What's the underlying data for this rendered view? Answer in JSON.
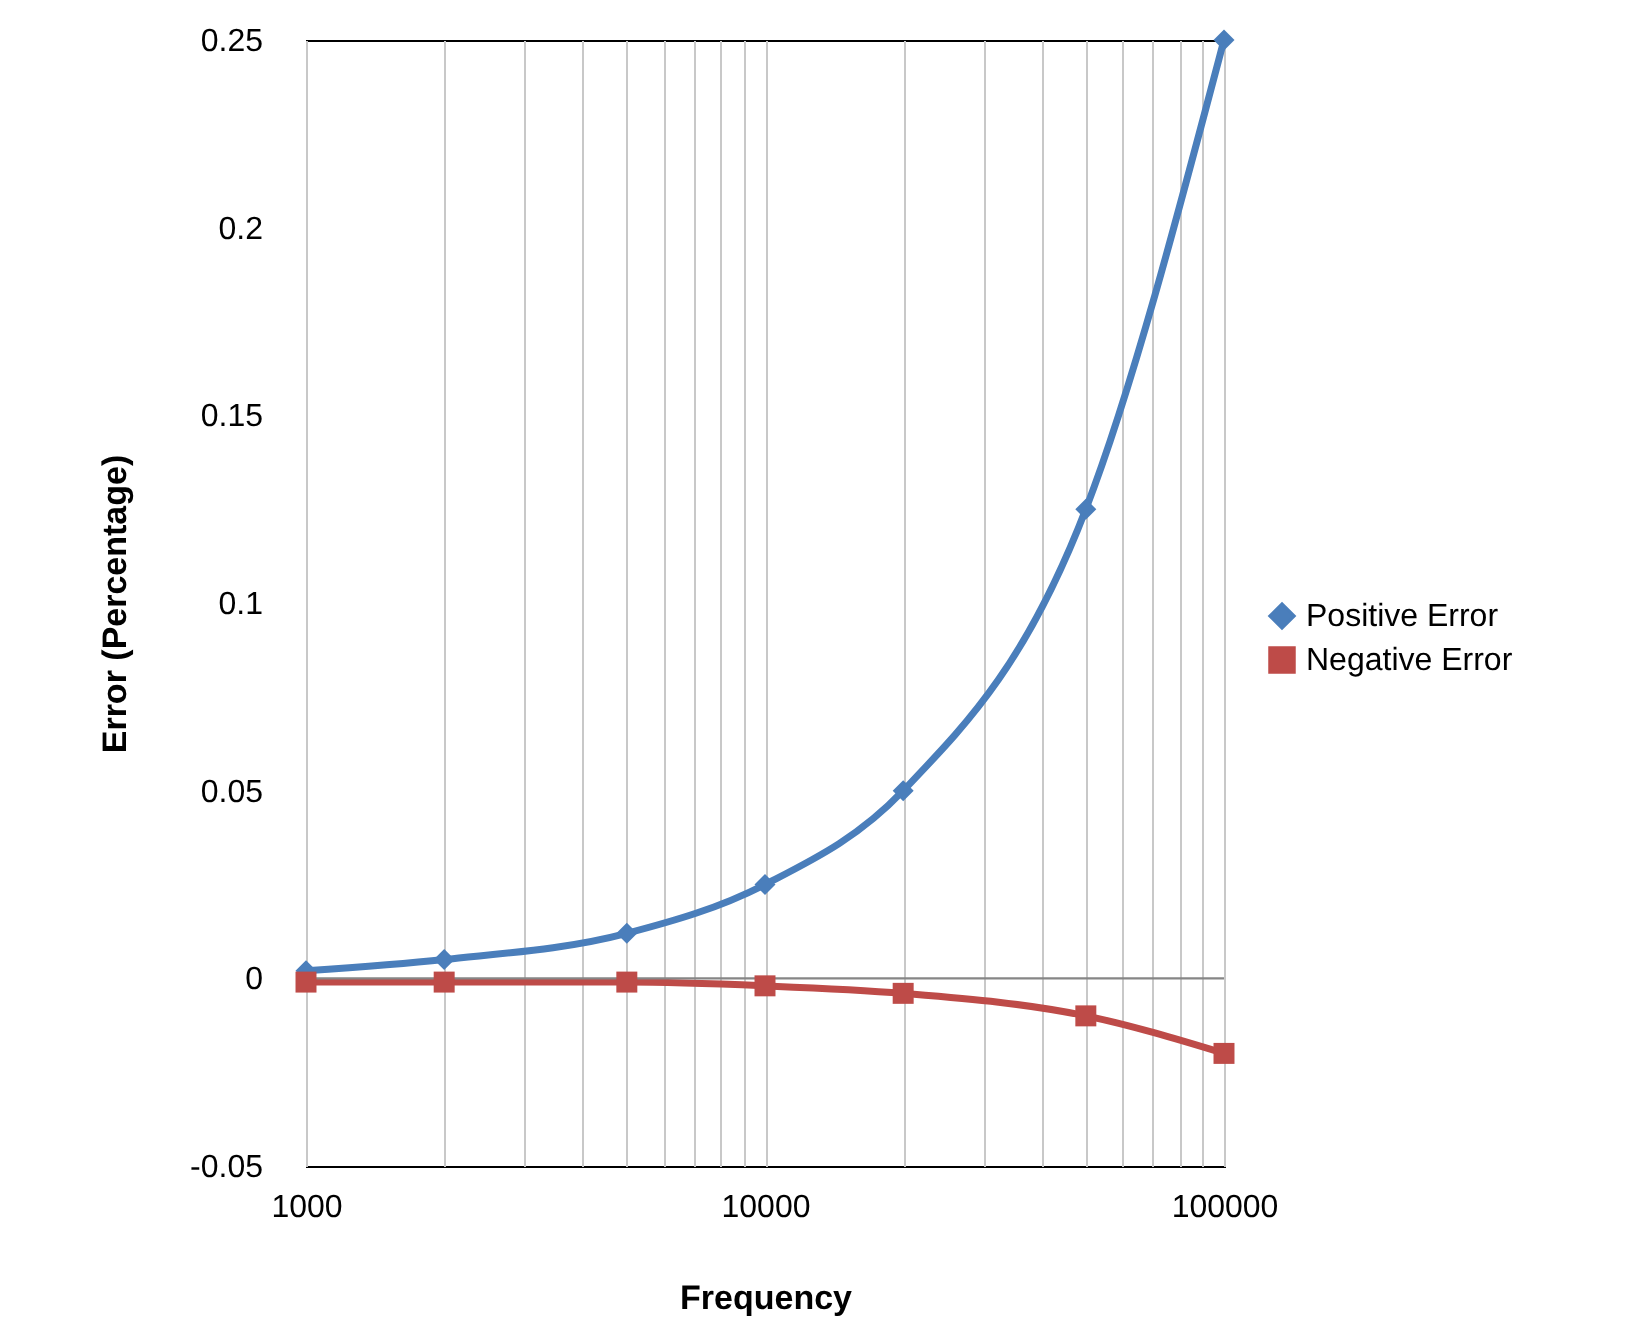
{
  "chart_data": {
    "type": "line",
    "xlabel": "Frequency",
    "ylabel": "Error (Percentage)",
    "log": "x",
    "grid": "x",
    "legend": "right",
    "line_style": "solid",
    "x": [
      1000,
      2000,
      5000,
      10000,
      20000,
      50000,
      100000
    ],
    "series": [
      {
        "name": "Positive Error",
        "color": "#4a7ebb",
        "marker": "diamond",
        "values": [
          0.002,
          0.005,
          0.012,
          0.025,
          0.05,
          0.125,
          0.25
        ]
      },
      {
        "name": "Negative Error",
        "color": "#be4b48",
        "marker": "square",
        "values": [
          -0.001,
          -0.001,
          -0.001,
          -0.002,
          -0.004,
          -0.01,
          -0.02
        ]
      }
    ],
    "xlim": [
      1000,
      100000
    ],
    "xticks": [
      1000,
      {
        "value": 2000,
        "label": null
      },
      {
        "value": 3000,
        "label": null
      },
      {
        "value": 4000,
        "label": null
      },
      {
        "value": 5000,
        "label": null
      },
      {
        "value": 6000,
        "label": null
      },
      {
        "value": 7000,
        "label": null
      },
      {
        "value": 8000,
        "label": null
      },
      {
        "value": 9000,
        "label": null
      },
      10000,
      {
        "value": 20000,
        "label": null
      },
      {
        "value": 30000,
        "label": null
      },
      {
        "value": 40000,
        "label": null
      },
      {
        "value": 50000,
        "label": null
      },
      {
        "value": 60000,
        "label": null
      },
      {
        "value": 70000,
        "label": null
      },
      {
        "value": 80000,
        "label": null
      },
      {
        "value": 90000,
        "label": null
      },
      100000
    ],
    "ylim": [
      -0.05,
      0.25
    ],
    "yticks": [
      -0.05,
      0,
      0.05,
      0.1,
      0.15,
      0.2,
      0.25
    ],
    "ref_lines": [
      {
        "axis": "y",
        "value": 0,
        "color": "#868686"
      }
    ]
  }
}
